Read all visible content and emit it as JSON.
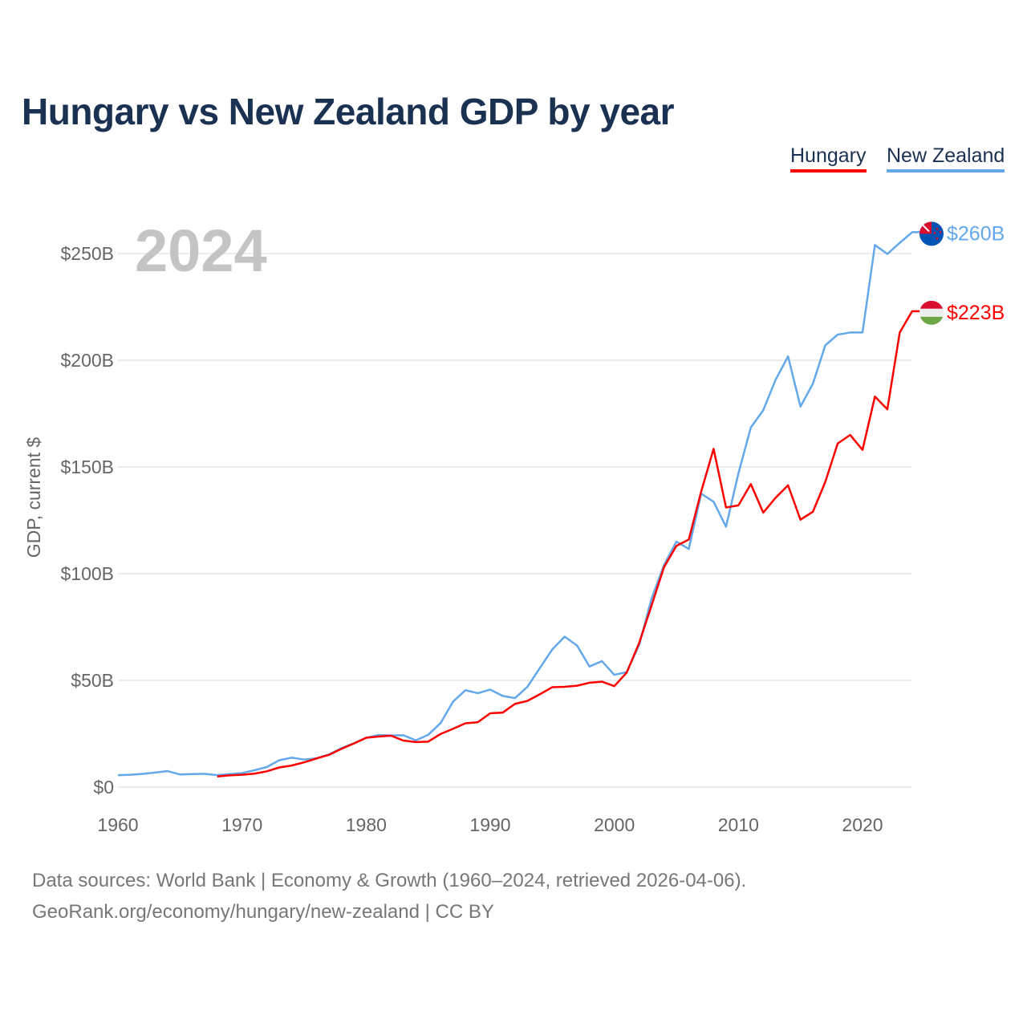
{
  "title": "Hungary vs New Zealand GDP by year",
  "legend": [
    {
      "label": "Hungary",
      "color": "#ff0000"
    },
    {
      "label": "New Zealand",
      "color": "#62a8ea"
    }
  ],
  "footer": {
    "line1": "Data sources: World Bank | Economy & Growth (1960–2024, retrieved 2026-04-06).",
    "line2": "GeoRank.org/economy/hungary/new-zealand | CC BY"
  },
  "chart_data": {
    "type": "line",
    "title": "Hungary vs New Zealand GDP by year",
    "ylabel": "GDP, current $",
    "xlabel": "",
    "year_label": "2024",
    "xlim": [
      1960,
      2024
    ],
    "ylim": [
      0,
      260
    ],
    "x_ticks": [
      1960,
      1970,
      1980,
      1990,
      2000,
      2010,
      2020
    ],
    "y_ticks": [
      {
        "v": 0,
        "label": "$0"
      },
      {
        "v": 50,
        "label": "$50B"
      },
      {
        "v": 100,
        "label": "$100B"
      },
      {
        "v": 150,
        "label": "$150B"
      },
      {
        "v": 200,
        "label": "$200B"
      },
      {
        "v": 250,
        "label": "$250B"
      }
    ],
    "grid": true,
    "legend_position": "top-right",
    "series": [
      {
        "name": "Hungary",
        "color": "#ff0000",
        "start_year": 1968,
        "end_label": "$223B",
        "flag": "hungary-flag",
        "values": [
          5.0,
          5.5,
          5.8,
          6.3,
          7.4,
          9.2,
          10.1,
          11.6,
          13.4,
          15.1,
          17.9,
          20.4,
          23.1,
          23.7,
          24.1,
          21.8,
          21.1,
          21.3,
          24.9,
          27.3,
          29.9,
          30.4,
          34.6,
          34.9,
          39,
          40.4,
          43.5,
          46.8,
          47,
          47.5,
          48.9,
          49.4,
          47.3,
          53.7,
          67.5,
          85.1,
          103,
          113,
          116,
          138.5,
          158.5,
          131,
          132,
          142,
          128.6,
          135.6,
          141.4,
          125.3,
          129,
          143,
          161,
          165,
          158,
          183,
          177,
          213,
          223
        ]
      },
      {
        "name": "New Zealand",
        "color": "#62a8ea",
        "start_year": 1960,
        "end_label": "$260B",
        "flag": "new-zealand-flag",
        "values": [
          5.6,
          5.8,
          6.2,
          6.8,
          7.5,
          5.9,
          6.1,
          6.2,
          5.6,
          6.1,
          6.6,
          7.9,
          9.4,
          12.6,
          13.8,
          12.9,
          13.5,
          15.3,
          18.2,
          20.5,
          23.1,
          24.4,
          24.2,
          24.3,
          21.9,
          24.5,
          30,
          40,
          45.4,
          44,
          45.7,
          42.7,
          41.7,
          47,
          55.8,
          64.5,
          70.5,
          66.3,
          56.5,
          59,
          52.6,
          53.9,
          66.6,
          88.3,
          104,
          115,
          111.6,
          137.5,
          133.7,
          122,
          147,
          168.5,
          176.6,
          190.9,
          201.8,
          178.3,
          189,
          207,
          212,
          213,
          213,
          254,
          249.8,
          255,
          260
        ]
      }
    ]
  }
}
